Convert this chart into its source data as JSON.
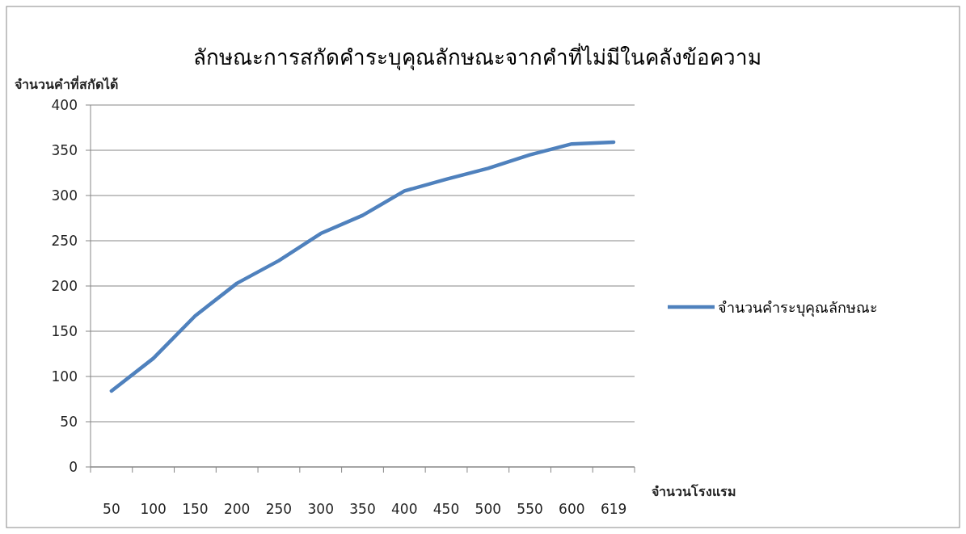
{
  "chart_data": {
    "type": "line",
    "title": "ลักษณะการสกัดคำระบุคุณลักษณะจากคำที่ไม่มีในคลังข้อความ",
    "ylabel": "จำนวนคำที่สกัดได้",
    "xlabel": "จำนวนโรงแรม",
    "categories": [
      "50",
      "100",
      "150",
      "200",
      "250",
      "300",
      "350",
      "400",
      "450",
      "500",
      "550",
      "600",
      "619"
    ],
    "series": [
      {
        "name": "จำนวนคำระบุคุณลักษณะ",
        "color": "#4f81bd",
        "values": [
          84,
          120,
          167,
          203,
          228,
          258,
          278,
          305,
          318,
          330,
          345,
          357,
          359
        ]
      }
    ],
    "ylim": [
      0,
      400
    ],
    "yticks": [
      0,
      50,
      100,
      150,
      200,
      250,
      300,
      350,
      400
    ],
    "grid": "y",
    "legend": "right",
    "marker": "none",
    "line_style": "solid"
  }
}
